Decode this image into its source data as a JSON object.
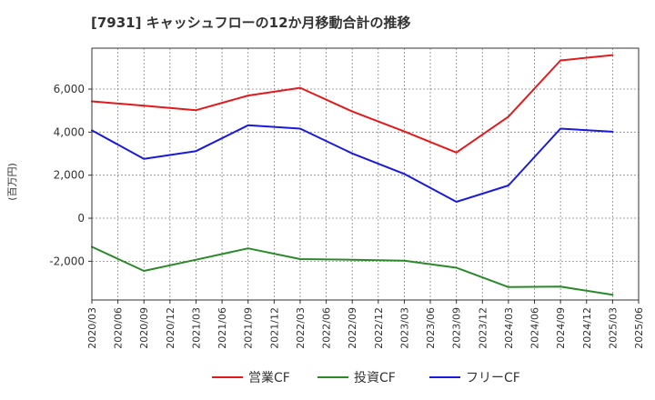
{
  "chart_data": {
    "type": "line",
    "title": "[7931]  キャッシュフローの12か月移動合計の推移",
    "ylabel": "(百万円)",
    "xlabel": "",
    "categories": [
      "2020/03",
      "2020/06",
      "2020/09",
      "2020/12",
      "2021/03",
      "2021/06",
      "2021/09",
      "2021/12",
      "2022/03",
      "2022/06",
      "2022/09",
      "2022/12",
      "2023/03",
      "2023/06",
      "2023/09",
      "2023/12",
      "2024/03",
      "2024/06",
      "2024/09",
      "2024/12",
      "2025/03",
      "2025/06"
    ],
    "yticks": [
      -2000,
      0,
      2000,
      4000,
      6000
    ],
    "ytick_labels": [
      "-2,000",
      "0",
      "2,000",
      "4,000",
      "6,000"
    ],
    "ylim": [
      -3800,
      7900
    ],
    "grid": true,
    "legend_position": "bottom",
    "series": [
      {
        "name": "営業CF",
        "color": "#e31a1c",
        "x": [
          "2020/03",
          "2020/09",
          "2021/03",
          "2021/09",
          "2022/03",
          "2022/09",
          "2023/03",
          "2023/09",
          "2024/03",
          "2024/09",
          "2025/03"
        ],
        "values": [
          5430,
          5230,
          5020,
          5700,
          6060,
          4960,
          4030,
          3050,
          4720,
          7330,
          7580
        ]
      },
      {
        "name": "投資CF",
        "color": "#2a8a2a",
        "x": [
          "2020/03",
          "2020/09",
          "2021/03",
          "2021/09",
          "2022/03",
          "2022/09",
          "2023/03",
          "2023/09",
          "2024/03",
          "2024/09",
          "2025/03"
        ],
        "values": [
          -1330,
          -2450,
          -1930,
          -1400,
          -1900,
          -1930,
          -1970,
          -2300,
          -3200,
          -3180,
          -3560
        ]
      },
      {
        "name": "フリーCF",
        "color": "#1a1adb",
        "x": [
          "2020/03",
          "2020/09",
          "2021/03",
          "2021/09",
          "2022/03",
          "2022/09",
          "2023/03",
          "2023/09",
          "2024/03",
          "2024/09",
          "2025/03"
        ],
        "values": [
          4080,
          2760,
          3120,
          4320,
          4160,
          3010,
          2060,
          760,
          1520,
          4160,
          4020
        ]
      }
    ]
  }
}
